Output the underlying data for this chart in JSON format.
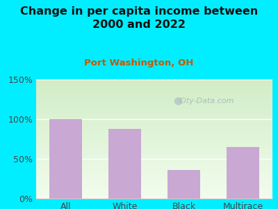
{
  "title": "Change in per capita income between\n2000 and 2022",
  "subtitle": "Port Washington, OH",
  "categories": [
    "All",
    "White",
    "Black",
    "Multirace"
  ],
  "values": [
    100,
    88,
    36,
    65
  ],
  "bar_color": "#c9a8d4",
  "title_fontsize": 11.5,
  "subtitle_fontsize": 9.5,
  "subtitle_color": "#cc5500",
  "tick_label_fontsize": 9,
  "background_outer": "#00eeff",
  "ylim": [
    0,
    150
  ],
  "yticks": [
    0,
    50,
    100,
    150
  ],
  "ytick_labels": [
    "0%",
    "50%",
    "100%",
    "150%"
  ],
  "watermark": "City-Data.com",
  "watermark_color": "#aab5be",
  "title_color": "#111111",
  "axis_label_color": "#444444"
}
